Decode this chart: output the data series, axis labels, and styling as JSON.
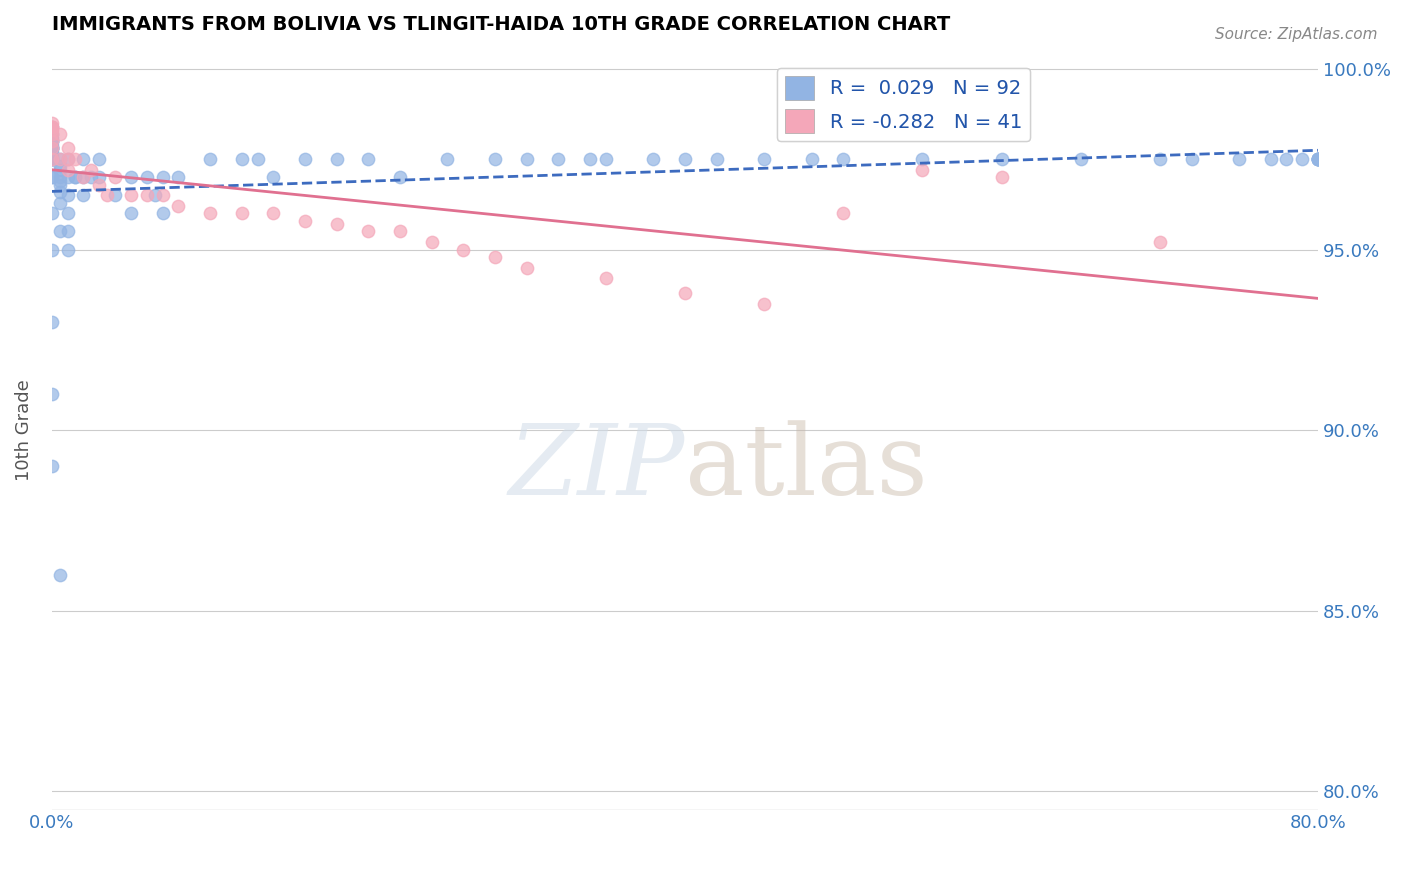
{
  "title": "IMMIGRANTS FROM BOLIVIA VS TLINGIT-HAIDA 10TH GRADE CORRELATION CHART",
  "source_text": "Source: ZipAtlas.com",
  "xlabel_bottom": "",
  "ylabel": "10th Grade",
  "xmin": 0.0,
  "xmax": 0.8,
  "ymin": 0.795,
  "ymax": 1.005,
  "x_ticks": [
    0.0,
    0.1,
    0.2,
    0.3,
    0.4,
    0.5,
    0.6,
    0.7,
    0.8
  ],
  "x_tick_labels": [
    "0.0%",
    "",
    "",
    "",
    "",
    "",
    "",
    "",
    "80.0%"
  ],
  "y_ticks": [
    0.8,
    0.85,
    0.9,
    0.95,
    1.0
  ],
  "y_tick_labels": [
    "80.0%",
    "85.0%",
    "90.0%",
    "95.0%",
    "100.0%"
  ],
  "blue_color": "#92b4e3",
  "pink_color": "#f4a7b9",
  "blue_line_color": "#3d6bbf",
  "pink_line_color": "#e07090",
  "trend_line_color": "#a0b8d8",
  "legend_blue_label": "R =  0.029   N = 92",
  "legend_pink_label": "R = -0.282   N = 41",
  "R_blue": 0.029,
  "N_blue": 92,
  "R_pink": -0.282,
  "N_pink": 41,
  "watermark": "ZIPatlas",
  "blue_scatter_x": [
    0.0,
    0.0,
    0.0,
    0.0,
    0.0,
    0.0,
    0.0,
    0.0,
    0.0,
    0.0,
    0.0,
    0.0,
    0.0,
    0.0,
    0.0,
    0.0,
    0.0,
    0.0,
    0.0,
    0.0,
    0.0,
    0.0,
    0.0,
    0.0,
    0.005,
    0.005,
    0.005,
    0.005,
    0.005,
    0.005,
    0.005,
    0.005,
    0.005,
    0.005,
    0.01,
    0.01,
    0.01,
    0.01,
    0.01,
    0.01,
    0.015,
    0.015,
    0.02,
    0.02,
    0.02,
    0.025,
    0.03,
    0.03,
    0.04,
    0.05,
    0.05,
    0.06,
    0.065,
    0.07,
    0.07,
    0.08,
    0.1,
    0.12,
    0.13,
    0.14,
    0.16,
    0.18,
    0.2,
    0.22,
    0.25,
    0.28,
    0.3,
    0.32,
    0.34,
    0.35,
    0.38,
    0.4,
    0.42,
    0.45,
    0.48,
    0.5,
    0.55,
    0.6,
    0.65,
    0.7,
    0.72,
    0.75,
    0.77,
    0.78,
    0.79,
    0.8,
    0.8,
    0.8,
    0.8,
    0.8,
    0.8,
    0.8
  ],
  "blue_scatter_y": [
    0.97,
    0.97,
    0.975,
    0.975,
    0.975,
    0.975,
    0.976,
    0.977,
    0.978,
    0.978,
    0.978,
    0.978,
    0.979,
    0.98,
    0.98,
    0.98,
    0.981,
    0.982,
    0.984,
    0.96,
    0.95,
    0.93,
    0.91,
    0.89,
    0.975,
    0.973,
    0.972,
    0.97,
    0.969,
    0.968,
    0.966,
    0.963,
    0.955,
    0.86,
    0.975,
    0.97,
    0.965,
    0.96,
    0.955,
    0.95,
    0.97,
    0.97,
    0.975,
    0.97,
    0.965,
    0.97,
    0.975,
    0.97,
    0.965,
    0.97,
    0.96,
    0.97,
    0.965,
    0.97,
    0.96,
    0.97,
    0.975,
    0.975,
    0.975,
    0.97,
    0.975,
    0.975,
    0.975,
    0.97,
    0.975,
    0.975,
    0.975,
    0.975,
    0.975,
    0.975,
    0.975,
    0.975,
    0.975,
    0.975,
    0.975,
    0.975,
    0.975,
    0.975,
    0.975,
    0.975,
    0.975,
    0.975,
    0.975,
    0.975,
    0.975,
    0.975,
    0.975,
    0.975,
    0.975,
    0.975,
    0.975,
    0.975
  ],
  "pink_scatter_x": [
    0.0,
    0.0,
    0.0,
    0.0,
    0.0,
    0.0,
    0.0,
    0.0,
    0.005,
    0.005,
    0.01,
    0.01,
    0.01,
    0.015,
    0.02,
    0.025,
    0.03,
    0.035,
    0.04,
    0.05,
    0.06,
    0.07,
    0.08,
    0.1,
    0.12,
    0.14,
    0.16,
    0.18,
    0.2,
    0.22,
    0.24,
    0.26,
    0.28,
    0.3,
    0.35,
    0.4,
    0.45,
    0.5,
    0.55,
    0.6,
    0.7
  ],
  "pink_scatter_y": [
    0.985,
    0.984,
    0.984,
    0.983,
    0.982,
    0.98,
    0.978,
    0.975,
    0.982,
    0.975,
    0.978,
    0.975,
    0.972,
    0.975,
    0.97,
    0.972,
    0.968,
    0.965,
    0.97,
    0.965,
    0.965,
    0.965,
    0.962,
    0.96,
    0.96,
    0.96,
    0.958,
    0.957,
    0.955,
    0.955,
    0.952,
    0.95,
    0.948,
    0.945,
    0.942,
    0.938,
    0.935,
    0.96,
    0.972,
    0.97,
    0.952
  ]
}
